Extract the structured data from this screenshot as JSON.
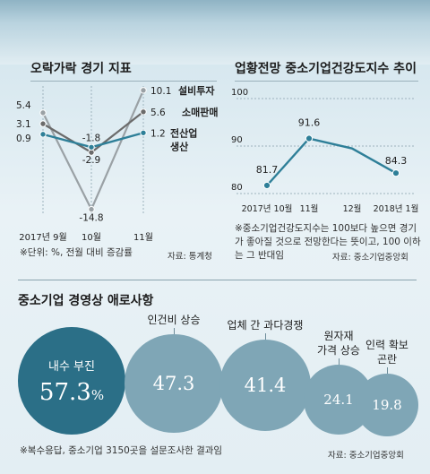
{
  "left_panel": {
    "title": "오락가락 경기 지표",
    "footnote": "※단위: %, 전월 대비 증감률",
    "source": "자료: 통계청"
  },
  "right_panel": {
    "title": "업황전망 중소기업건강도지수 추이",
    "footnote": "※중소기업건강도지수는 100보다 높으면 경기가 좋아질 것으로 전망한다는 뜻이고, 100 이하는 그 반대임",
    "source": "자료: 중소기업중앙회"
  },
  "bottom_panel": {
    "title": "중소기업 경영상 애로사항",
    "footnote": "※복수응답, 중소기업 3150곳을 설문조사한 결과임",
    "source": "자료: 중소기업중앙회"
  },
  "chart_data": [
    {
      "type": "line",
      "title": "오락가락 경기 지표",
      "x": [
        "2017년 9월",
        "10월",
        "11월"
      ],
      "series": [
        {
          "name": "설비투자",
          "values": [
            5.4,
            -14.8,
            10.1
          ],
          "color": "#9aa1a5"
        },
        {
          "name": "소매판매",
          "values": [
            3.1,
            -2.9,
            5.6
          ],
          "color": "#6b6b6b"
        },
        {
          "name": "전산업 생산",
          "values": [
            0.9,
            -1.8,
            1.2
          ],
          "color": "#2e7f98"
        }
      ],
      "value_labels": [
        [
          "5.4",
          "-14.8",
          "10.1"
        ],
        [
          "3.1",
          "-2.9",
          "5.6"
        ],
        [
          "0.9",
          "-1.8",
          "1.2"
        ]
      ],
      "ylim": [
        -16,
        11
      ],
      "grid": true
    },
    {
      "type": "line",
      "title": "업황전망 중소기업건강도지수 추이",
      "x": [
        "2017년 10월",
        "11월",
        "12월",
        "2018년 1월"
      ],
      "series": [
        {
          "values": [
            81.7,
            91.6,
            89.5,
            84.3
          ],
          "color": "#2e7f98"
        }
      ],
      "value_labels": [
        "81.7",
        "91.6",
        "",
        "84.3"
      ],
      "yticks": [
        "100",
        "90",
        "80"
      ],
      "ylim": [
        80,
        100
      ],
      "grid": true
    },
    {
      "type": "bubble",
      "title": "중소기업 경영상 애로사항",
      "categories": [
        "내수 부진",
        "인건비 상승",
        "업체 간 과다경쟁",
        "원자재 가격 상승",
        "인력 확보 곤란"
      ],
      "category_lines": [
        [
          "내수 부진"
        ],
        [
          "인건비 상승"
        ],
        [
          "업체 간 과다경쟁"
        ],
        [
          "원자재",
          "가격 상승"
        ],
        [
          "인력 확보",
          "곤란"
        ]
      ],
      "values": [
        57.3,
        47.3,
        41.4,
        24.1,
        19.8
      ],
      "value_labels": [
        "57.3",
        "47.3",
        "41.4",
        "24.1",
        "19.8"
      ],
      "unit": "%",
      "colors": [
        "#2b6f87",
        "#7fa6b6",
        "#7fa6b6",
        "#7fa6b6",
        "#7fa6b6"
      ]
    }
  ]
}
